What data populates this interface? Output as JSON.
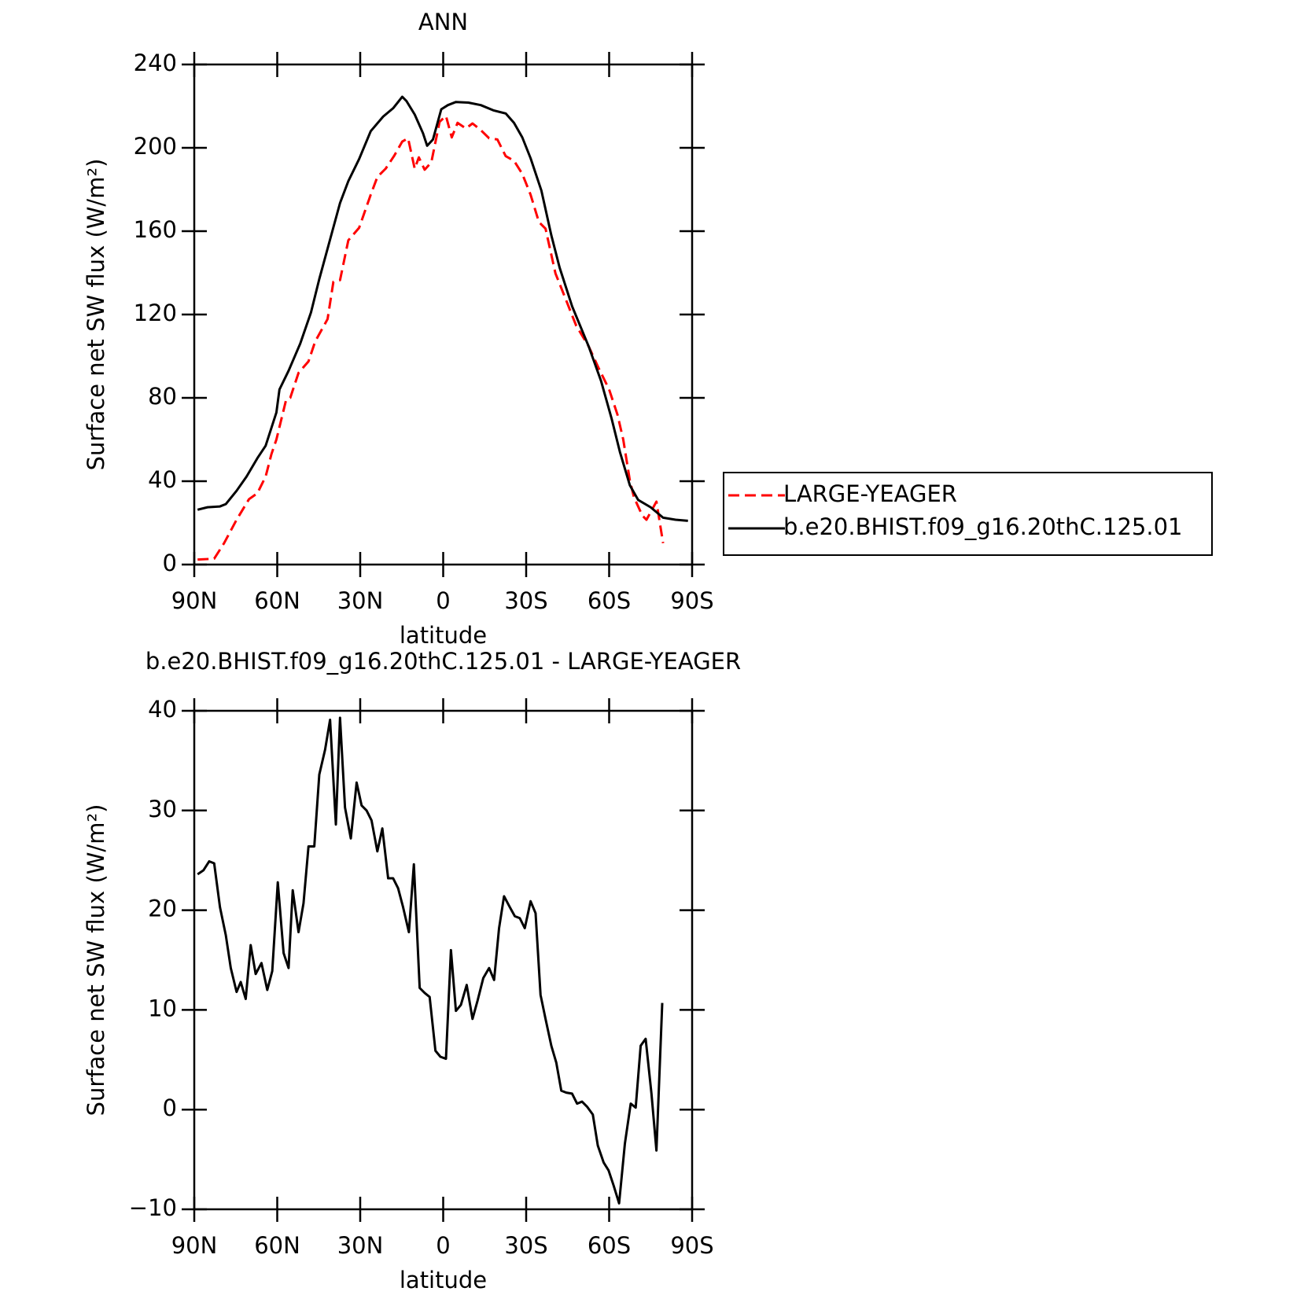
{
  "chart_data": [
    {
      "type": "line",
      "title": "ANN",
      "xlabel": "latitude",
      "ylabel": "Surface net SW flux (W/m²)",
      "xlim": [
        90,
        -90
      ],
      "xticks": [
        {
          "value": 90,
          "label": "90N"
        },
        {
          "value": 60,
          "label": "60N"
        },
        {
          "value": 30,
          "label": "30N"
        },
        0,
        {
          "value": -30,
          "label": "30S"
        },
        {
          "value": -60,
          "label": "60S"
        },
        {
          "value": -90,
          "label": "90S"
        }
      ],
      "ylim": [
        0,
        240
      ],
      "yticks": [
        0,
        40,
        80,
        120,
        160,
        200,
        240
      ],
      "legend": "right",
      "series": [
        {
          "name": "LARGE-YEAGER",
          "color": "#ff0000",
          "dashed": true,
          "x": [
            88.8,
            82.8,
            79.2,
            74.7,
            70.2,
            67.2,
            64.2,
            62.1,
            60.3,
            56.8,
            55.3,
            52.3,
            48.7,
            46.3,
            41.8,
            39.7,
            37.3,
            34.3,
            30.4,
            26.2,
            23.8,
            20.8,
            17.8,
            14.8,
            12.7,
            10.3,
            8.8,
            6.7,
            4.3,
            1.3,
            -1.0,
            -3.1,
            -5.2,
            -8.2,
            -10.6,
            -13.6,
            -16.6,
            -19.6,
            -22.6,
            -25.6,
            -28.6,
            -31.6,
            -34.6,
            -37.0,
            -40.6,
            -43.6,
            -48.1,
            -52.6,
            -56.2,
            -60.0,
            -63.0,
            -65.1,
            -67.5,
            -69.0,
            -72.0,
            -73.5,
            -77.1,
            -79.5
          ],
          "values": [
            2.4,
            2.8,
            10.3,
            21.5,
            31.4,
            34.2,
            42.2,
            53,
            60,
            79,
            80,
            92,
            97.5,
            107,
            117.8,
            135.7,
            136.5,
            155.6,
            161.6,
            177.5,
            186,
            190,
            196,
            203,
            204.6,
            190,
            195.4,
            189.5,
            193,
            212.5,
            215.3,
            205,
            212,
            209.3,
            211.7,
            208.5,
            204.6,
            204,
            196,
            193.8,
            187.5,
            177.5,
            164.4,
            161.2,
            139.7,
            129.7,
            114.6,
            104.7,
            94.3,
            84,
            72,
            60,
            40.2,
            32.2,
            23.5,
            21.5,
            30.2,
            10.3
          ]
        },
        {
          "name": "b.e20.BHIST.f09_g16.20thC.125.01",
          "color": "#000000",
          "dashed": false,
          "x": [
            88.8,
            85.2,
            80.7,
            78.6,
            74.7,
            71.1,
            67.2,
            64.2,
            60.3,
            59.2,
            55.9,
            51.7,
            47.8,
            44.8,
            40.9,
            37.3,
            34.3,
            30.4,
            26.2,
            21.7,
            18.1,
            14.8,
            13.3,
            10.3,
            7.3,
            5.8,
            3.7,
            0.7,
            -1.7,
            -4.6,
            -9.1,
            -13.6,
            -18.1,
            -22.6,
            -25.6,
            -28.6,
            -31.6,
            -35.5,
            -39.1,
            -42.1,
            -46.6,
            -52.6,
            -57.1,
            -60.9,
            -63.9,
            -67.5,
            -70.5,
            -75.0,
            -79.5,
            -84.0,
            -88.5
          ],
          "values": [
            26.3,
            27.5,
            27.9,
            29,
            35.4,
            42.2,
            51,
            57,
            73,
            84,
            93,
            106,
            121,
            137,
            156,
            173.5,
            184,
            194.6,
            208,
            215,
            219,
            224.5,
            222.5,
            216,
            207,
            201,
            204,
            218.5,
            220.5,
            222,
            221.7,
            220.5,
            218,
            216.5,
            212,
            205,
            195,
            179.5,
            158,
            142.5,
            124,
            104.7,
            88,
            70,
            54,
            38,
            31,
            27.5,
            22.5,
            21.5,
            21
          ]
        }
      ]
    },
    {
      "type": "line",
      "title": "b.e20.BHIST.f09_g16.20thC.125.01 - LARGE-YEAGER",
      "xlabel": "latitude",
      "ylabel": "Surface net SW flux (W/m²)",
      "xlim": [
        90,
        -90
      ],
      "xticks": [
        {
          "value": 90,
          "label": "90N"
        },
        {
          "value": 60,
          "label": "60N"
        },
        {
          "value": 30,
          "label": "30N"
        },
        0,
        {
          "value": -30,
          "label": "30S"
        },
        {
          "value": -60,
          "label": "60S"
        },
        {
          "value": -90,
          "label": "90S"
        }
      ],
      "ylim": [
        -10,
        40
      ],
      "yticks": [
        {
          "value": -10,
          "label": "−10"
        },
        0,
        10,
        20,
        30,
        40
      ],
      "color": "#000000",
      "x": [
        88.8,
        86.7,
        84.6,
        82.8,
        80.7,
        78.6,
        76.8,
        74.7,
        73.2,
        71.4,
        69.6,
        67.8,
        65.7,
        63.6,
        61.8,
        59.8,
        57.7,
        55.9,
        54.4,
        52.3,
        50.5,
        48.7,
        46.6,
        44.8,
        42.7,
        40.9,
        38.8,
        37.3,
        35.5,
        33.4,
        31.3,
        29.5,
        27.7,
        25.9,
        23.8,
        22.0,
        19.9,
        18.1,
        16.3,
        14.5,
        12.4,
        10.6,
        8.5,
        6.7,
        4.9,
        2.8,
        1.0,
        -1.0,
        -2.8,
        -4.6,
        -6.4,
        -8.5,
        -10.6,
        -12.4,
        -14.5,
        -16.6,
        -18.4,
        -20.2,
        -22.0,
        -24.1,
        -25.9,
        -27.7,
        -29.5,
        -31.6,
        -33.4,
        -35.2,
        -37.0,
        -39.1,
        -40.9,
        -42.7,
        -44.5,
        -46.6,
        -48.4,
        -50.2,
        -52.0,
        -54.1,
        -55.9,
        -58.0,
        -59.8,
        -61.6,
        -63.6,
        -65.7,
        -67.8,
        -69.6,
        -71.4,
        -73.2,
        -75.3,
        -77.1,
        -79.2
      ],
      "values": [
        23.6,
        24,
        24.9,
        24.7,
        20.3,
        17.5,
        14.2,
        11.8,
        12.8,
        11.1,
        16.5,
        13.6,
        14.7,
        12,
        13.9,
        22.8,
        15.7,
        14.2,
        22,
        17.8,
        20.7,
        26.4,
        26.4,
        33.6,
        36.1,
        39.1,
        28.6,
        39.3,
        30.3,
        27.2,
        32.8,
        30.5,
        30,
        29,
        25.9,
        28.2,
        23.2,
        23.2,
        22.2,
        20.3,
        17.8,
        24.6,
        12.2,
        11.7,
        11.3,
        5.9,
        5.3,
        5.1,
        16,
        9.9,
        10.5,
        12.5,
        9.1,
        10.9,
        13.2,
        14.2,
        13,
        18.2,
        21.4,
        20.3,
        19.4,
        19.2,
        18.2,
        20.9,
        19.7,
        11.5,
        9.1,
        6.4,
        4.7,
        1.9,
        1.7,
        1.6,
        0.6,
        0.8,
        0.3,
        -0.5,
        -3.6,
        -5.3,
        -6.1,
        -7.6,
        -9.4,
        -3.4,
        0.6,
        0.2,
        6.4,
        7.1,
        1.6,
        -4.1,
        10.7
      ]
    }
  ]
}
